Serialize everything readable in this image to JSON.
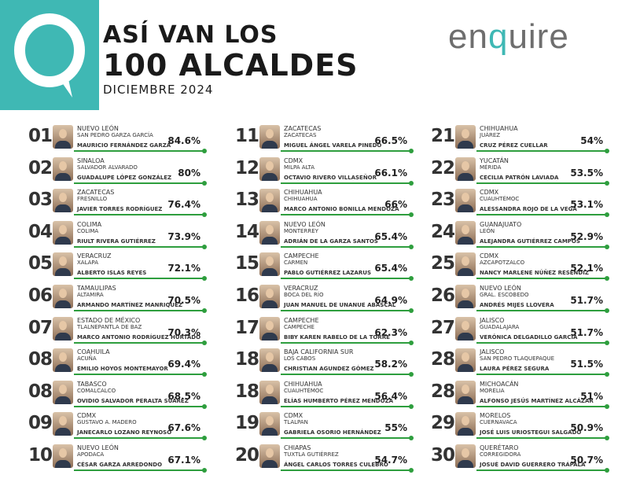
{
  "header": {
    "title_line1": "ASÍ VAN LOS",
    "title_line2": "100 ALCALDES",
    "subtitle": "DICIEMBRE 2024",
    "brand_left": "en",
    "brand_q": "q",
    "brand_right": "uire"
  },
  "colors": {
    "accent": "#3fb8b4",
    "bar": "#2e9e3e",
    "text": "#222222"
  },
  "chart_data": {
    "type": "table",
    "title": "ASÍ VAN LOS 100 ALCALDES",
    "subtitle": "DICIEMBRE 2024",
    "columns": [
      [
        {
          "rank": "01",
          "state": "NUEVO LEÓN",
          "municipality": "SAN PEDRO GARZA GARCÍA",
          "name": "MAURICIO FERNÁNDEZ GARZA",
          "approval": "84.6%"
        },
        {
          "rank": "02",
          "state": "SINALOA",
          "municipality": "SALVADOR ALVARADO",
          "name": "GUADALUPE LÓPEZ GONZÁLEZ",
          "approval": "80%"
        },
        {
          "rank": "03",
          "state": "ZACATECAS",
          "municipality": "FRESNILLO",
          "name": "JAVIER TORRES RODRÍGUEZ",
          "approval": "76.4%"
        },
        {
          "rank": "04",
          "state": "COLIMA",
          "municipality": "COLIMA",
          "name": "RIULT RIVERA GUTIÉRREZ",
          "approval": "73.9%"
        },
        {
          "rank": "05",
          "state": "VERACRUZ",
          "municipality": "XALAPA",
          "name": "ALBERTO ISLAS REYES",
          "approval": "72.1%"
        },
        {
          "rank": "06",
          "state": "TAMAULIPAS",
          "municipality": "ALTAMIRA",
          "name": "ARMANDO MARTÍNEZ MANRIQUEZ",
          "approval": "70.5%"
        },
        {
          "rank": "07",
          "state": "ESTADO DE MÉXICO",
          "municipality": "TLALNEPANTLA DE BAZ",
          "name": "MARCO ANTONIO RODRÍGUEZ HURTADO",
          "approval": "70.3%"
        },
        {
          "rank": "08",
          "state": "COAHUILA",
          "municipality": "ACUÑA",
          "name": "EMILIO HOYOS MONTEMAYOR",
          "approval": "69.4%"
        },
        {
          "rank": "08",
          "state": "TABASCO",
          "municipality": "COMALCALCO",
          "name": "OVIDIO SALVADOR PERALTA SUÁREZ",
          "approval": "68.5%"
        },
        {
          "rank": "09",
          "state": "CDMX",
          "municipality": "GUSTAVO A. MADERO",
          "name": "JANECARLO LOZANO REYNOSO",
          "approval": "67.6%"
        },
        {
          "rank": "10",
          "state": "NUEVO LEÓN",
          "municipality": "APODACA",
          "name": "CÉSAR GARZA ARREDONDO",
          "approval": "67.1%"
        }
      ],
      [
        {
          "rank": "11",
          "state": "ZACATECAS",
          "municipality": "ZACATECAS",
          "name": "MIGUEL ÁNGEL VARELA PINEDO",
          "approval": "66.5%"
        },
        {
          "rank": "12",
          "state": "CDMX",
          "municipality": "MILPA ALTA",
          "name": "OCTAVIO RIVERO VILLASEÑOR",
          "approval": "66.1%"
        },
        {
          "rank": "13",
          "state": "CHIHUAHUA",
          "municipality": "CHIHUAHUA",
          "name": "MARCO ANTONIO BONILLA MENDOZA",
          "approval": "66%"
        },
        {
          "rank": "14",
          "state": "NUEVO LEÓN",
          "municipality": "MONTERREY",
          "name": "ADRIÁN DE LA GARZA SANTOS",
          "approval": "65.4%"
        },
        {
          "rank": "15",
          "state": "CAMPECHE",
          "municipality": "CARMEN",
          "name": "PABLO GUTIÉRREZ LAZARUS",
          "approval": "65.4%"
        },
        {
          "rank": "16",
          "state": "VERACRUZ",
          "municipality": "BOCA DEL RÍO",
          "name": "JUAN MANUEL DE UNANUE ABASCAL",
          "approval": "64.9%"
        },
        {
          "rank": "17",
          "state": "CAMPECHE",
          "municipality": "CAMPECHE",
          "name": "BIBY KAREN RABELO DE LA TORRE",
          "approval": "62.3%"
        },
        {
          "rank": "18",
          "state": "BAJA CALIFORNIA SUR",
          "municipality": "LOS CABOS",
          "name": "CHRISTIAN AGUNDEZ GÓMEZ",
          "approval": "58.2%"
        },
        {
          "rank": "18",
          "state": "CHIHUAHUA",
          "municipality": "CUAUHTÉMOC",
          "name": "ELÍAS HUMBERTO PÉREZ MENDOZA",
          "approval": "56.4%"
        },
        {
          "rank": "19",
          "state": "CDMX",
          "municipality": "TLALPAN",
          "name": "GABRIELA OSORIO HERNÁNDEZ",
          "approval": "55%"
        },
        {
          "rank": "20",
          "state": "CHIAPAS",
          "municipality": "TUXTLA GUTIÉRREZ",
          "name": "ÁNGEL CARLOS TORRES CULEBRO",
          "approval": "54.7%"
        }
      ],
      [
        {
          "rank": "21",
          "state": "CHIHUAHUA",
          "municipality": "JUÁREZ",
          "name": "CRUZ PÉREZ CUELLAR",
          "approval": "54%"
        },
        {
          "rank": "22",
          "state": "YUCATÁN",
          "municipality": "MÉRIDA",
          "name": "CECILIA PATRÓN LAVIADA",
          "approval": "53.5%"
        },
        {
          "rank": "23",
          "state": "CDMX",
          "municipality": "CUAUHTÉMOC",
          "name": "ALESSANDRA ROJO DE LA VEGA",
          "approval": "53.1%"
        },
        {
          "rank": "24",
          "state": "GUANAJUATO",
          "municipality": "LEÓN",
          "name": "ALEJANDRA GUTIÉRREZ CAMPOS",
          "approval": "52.9%"
        },
        {
          "rank": "25",
          "state": "CDMX",
          "municipality": "AZCAPOTZALCO",
          "name": "NANCY MARLENE NÚÑEZ RESÉNDIZ",
          "approval": "52.1%"
        },
        {
          "rank": "26",
          "state": "NUEVO LEÓN",
          "municipality": "GRAL. ESCOBEDO",
          "name": "ANDRÉS MIJES LLOVERA",
          "approval": "51.7%"
        },
        {
          "rank": "27",
          "state": "JALISCO",
          "municipality": "GUADALAJARA",
          "name": "VERÓNICA DELGADILLO GARCÍA",
          "approval": "51.7%"
        },
        {
          "rank": "28",
          "state": "JALISCO",
          "municipality": "SAN PEDRO TLAQUEPAQUE",
          "name": "LAURA PÉREZ SEGURA",
          "approval": "51.5%"
        },
        {
          "rank": "28",
          "state": "MICHOACÁN",
          "municipality": "MORELIA",
          "name": "ALFONSO JESÚS MARTÍNEZ ALCÁZAR",
          "approval": "51%"
        },
        {
          "rank": "29",
          "state": "MORELOS",
          "municipality": "CUERNAVACA",
          "name": "JOSÉ LUIS URIOSTEGUI SALGADO",
          "approval": "50.9%"
        },
        {
          "rank": "30",
          "state": "QUERÉTARO",
          "municipality": "CORREGIDORA",
          "name": "JOSUÉ DAVID GUERRERO TRÁPALA",
          "approval": "50.7%"
        }
      ]
    ]
  }
}
